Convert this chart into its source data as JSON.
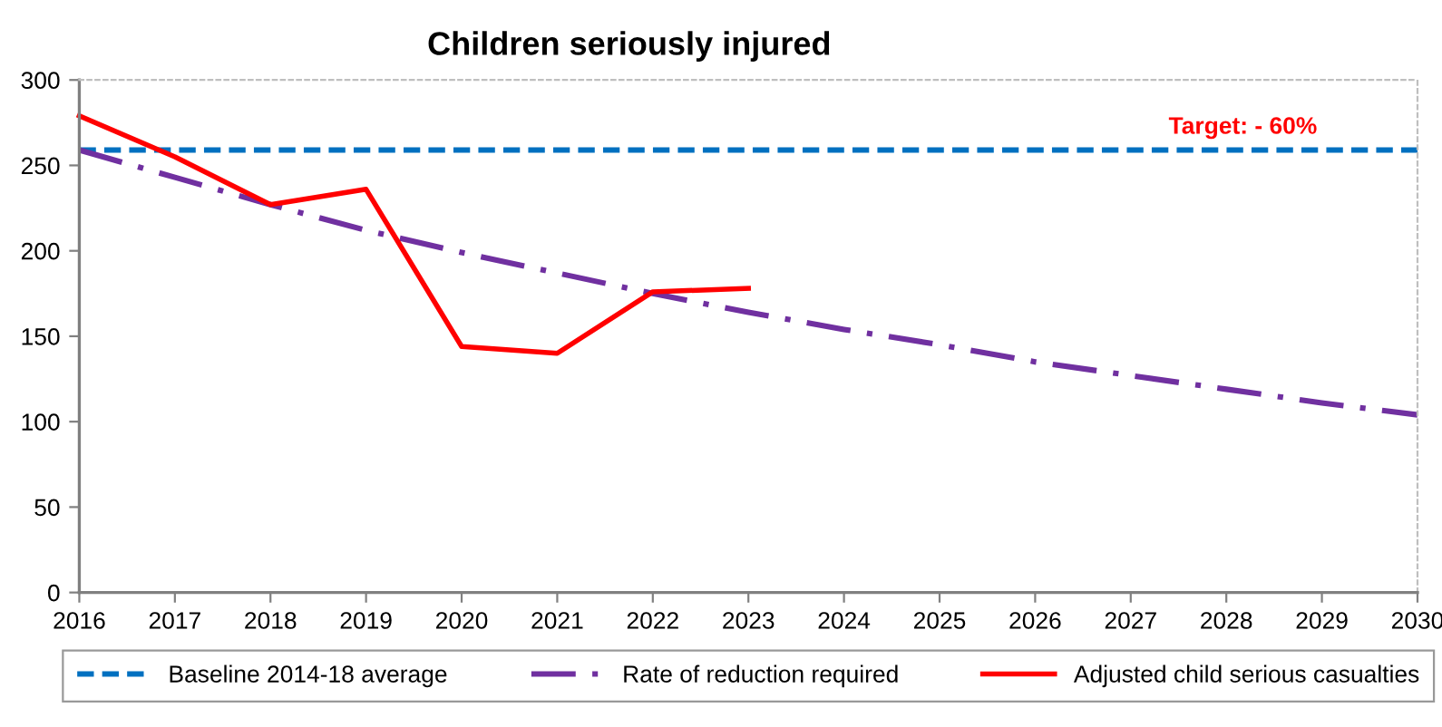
{
  "chart_data": {
    "type": "line",
    "title": "Children seriously injured",
    "series": [
      {
        "name": "Baseline 2014-18 average",
        "color": "#0070c0",
        "line_style": "dashed",
        "x": [
          2016,
          2030
        ],
        "values": [
          259,
          259
        ]
      },
      {
        "name": "Rate of reduction required",
        "color": "#7030a0",
        "line_style": "dashdot",
        "x": [
          2016,
          2017,
          2018,
          2019,
          2020,
          2021,
          2022,
          2023,
          2024,
          2025,
          2026,
          2027,
          2028,
          2029,
          2030
        ],
        "values": [
          259,
          243,
          227,
          212,
          199,
          187,
          175,
          164,
          154,
          145,
          135,
          127,
          119,
          111,
          104
        ]
      },
      {
        "name": "Adjusted child serious casualties",
        "color": "#ff0000",
        "line_style": "solid",
        "x": [
          2016,
          2017,
          2018,
          2019,
          2020,
          2021,
          2022,
          2023
        ],
        "values": [
          279,
          255,
          227,
          236,
          144,
          140,
          176,
          178
        ]
      }
    ],
    "annotations": [
      "Target: - 60%"
    ],
    "xlim": [
      2016,
      2030
    ],
    "xticks": [
      2016,
      2017,
      2018,
      2019,
      2020,
      2021,
      2022,
      2023,
      2024,
      2025,
      2026,
      2027,
      2028,
      2029,
      2030
    ],
    "ylim": [
      0,
      300
    ],
    "yticks": [
      0,
      50,
      100,
      150,
      200,
      250,
      300
    ],
    "grid": false,
    "legend": "bottom",
    "marker": "none"
  }
}
